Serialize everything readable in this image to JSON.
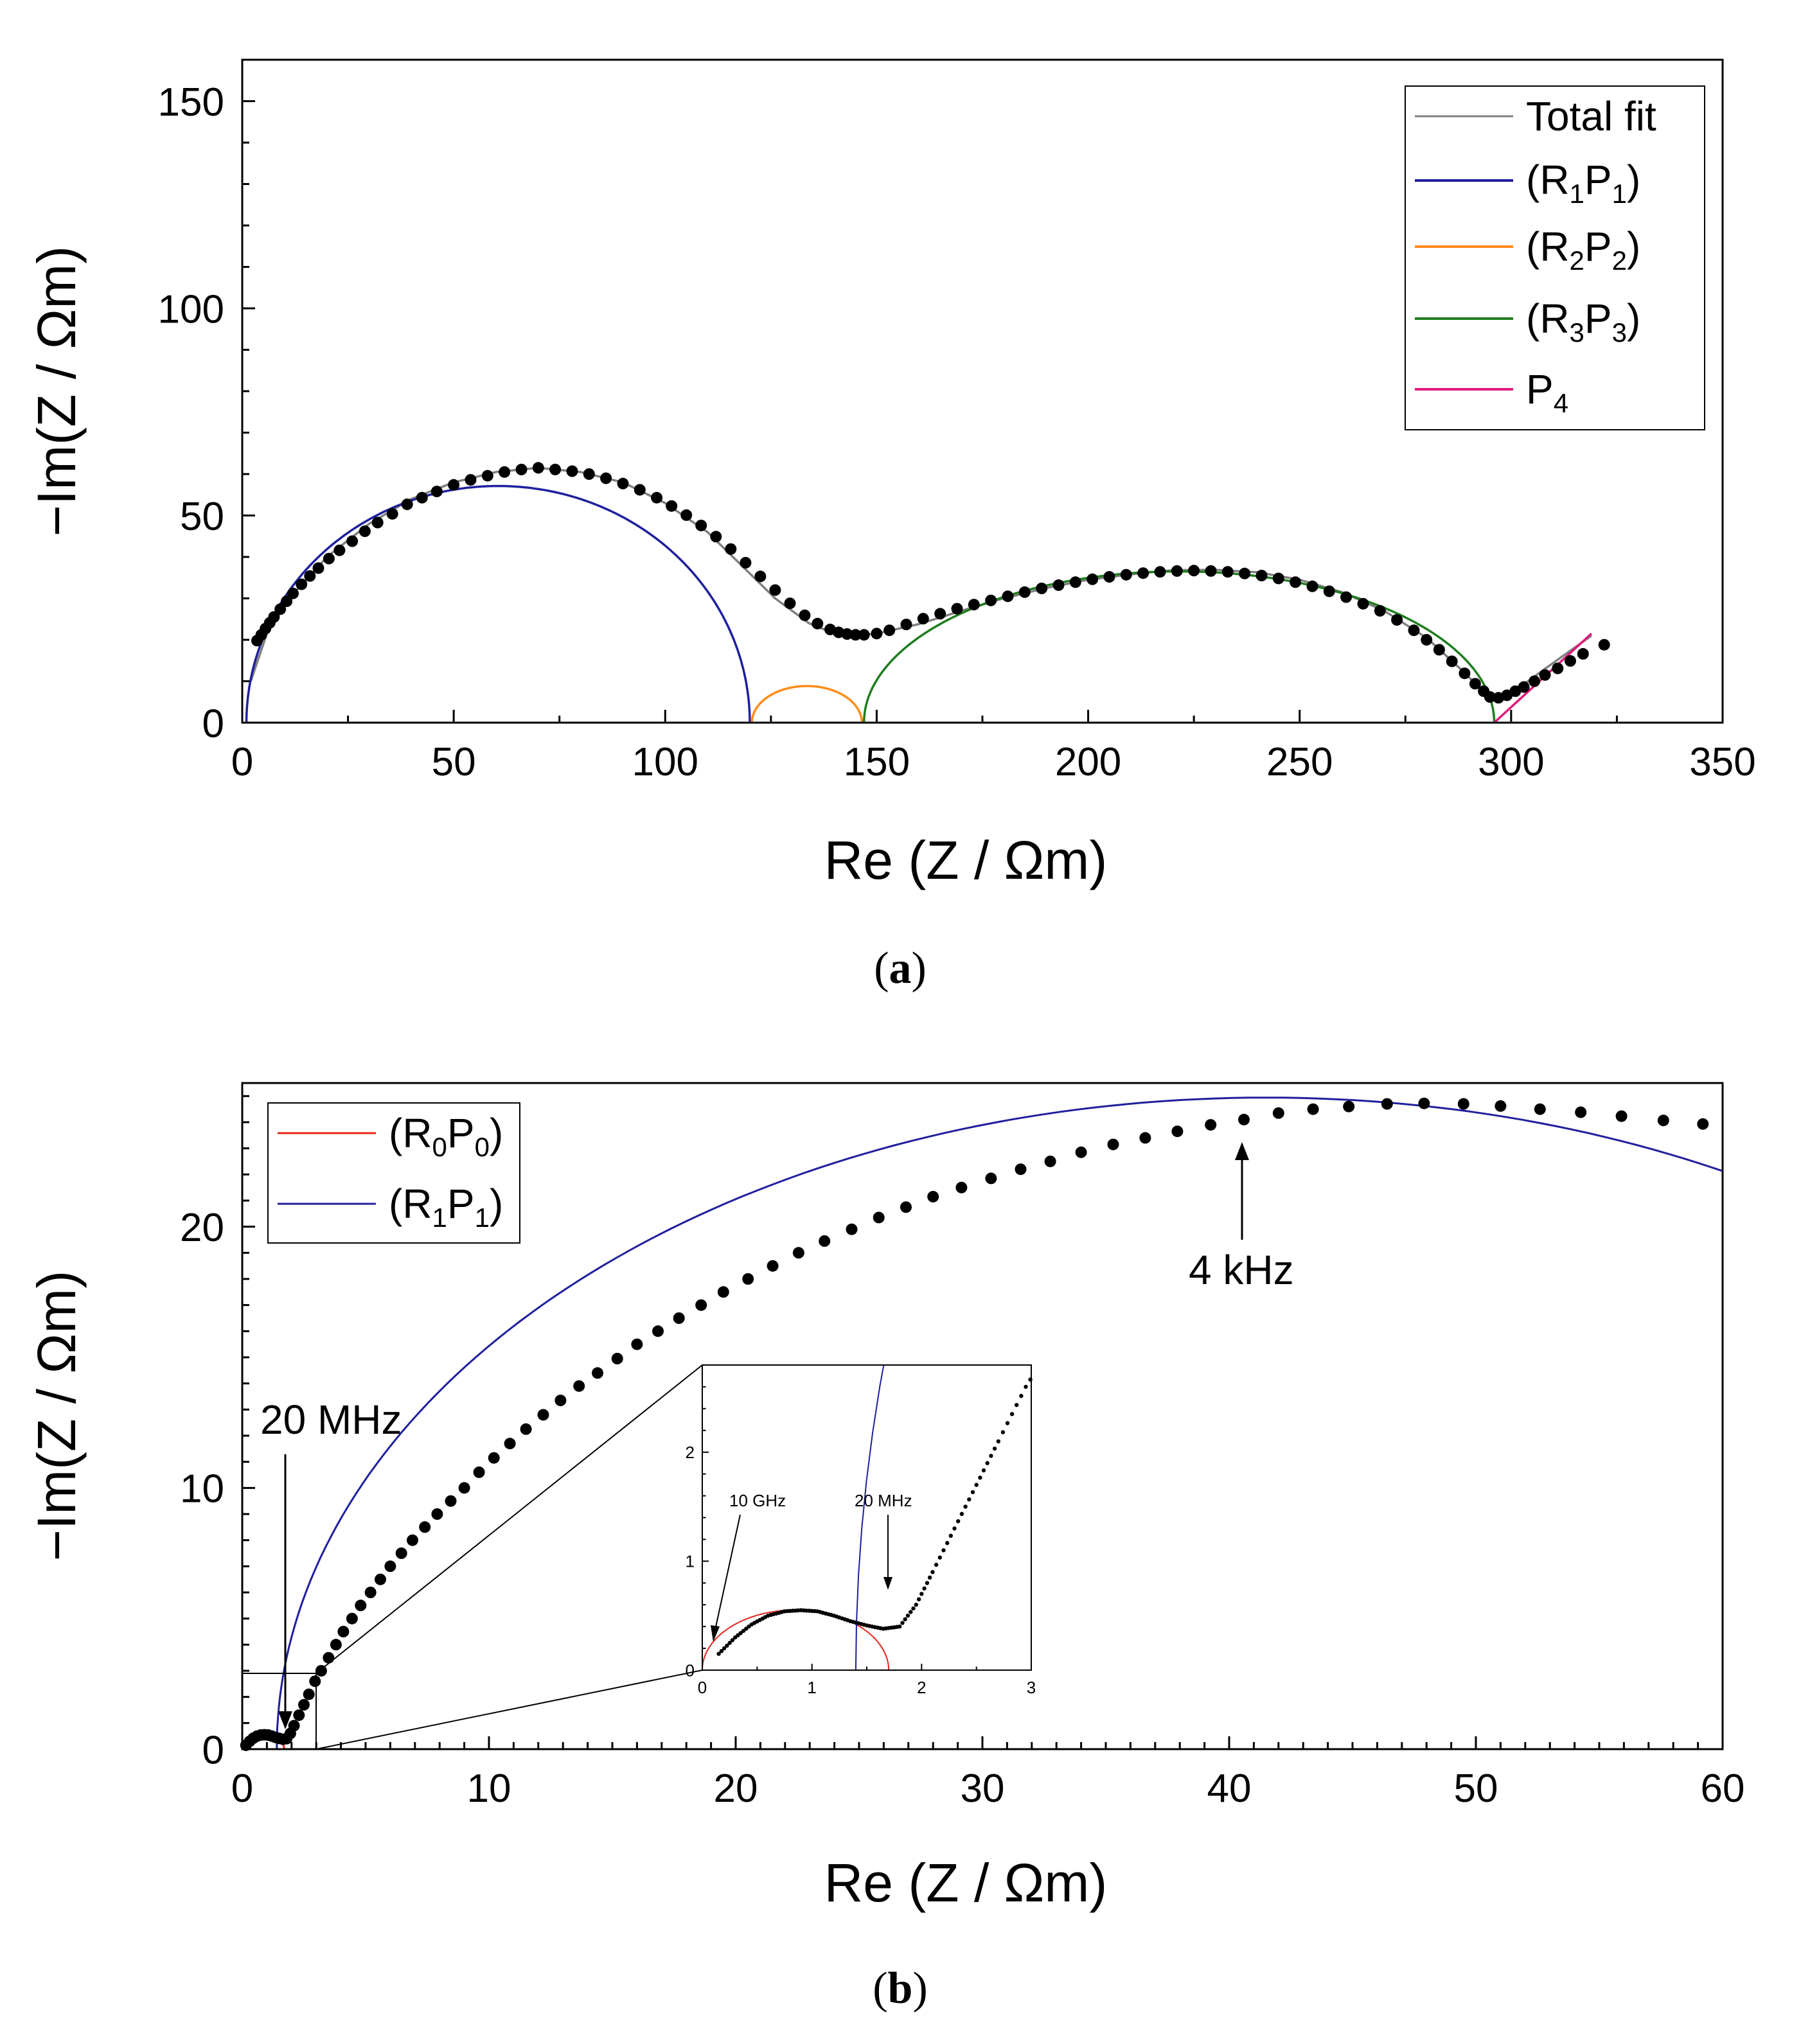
{
  "chart_data": [
    {
      "panel": "a",
      "caption": "(a)",
      "caption_letter": "a",
      "type": "scatter",
      "xlabel": "Re (Z / Ωm)",
      "ylabel": "−Im(Z / Ωm)",
      "xlim": [
        0,
        350
      ],
      "ylim": [
        0,
        160
      ],
      "xticks": [
        0,
        50,
        100,
        150,
        200,
        250,
        300,
        350
      ],
      "yticks": [
        0,
        50,
        100,
        150
      ],
      "legend_position": "top-right",
      "legend": [
        {
          "label": "Total fit",
          "color": "#808080"
        },
        {
          "label": "(R1P1)",
          "color": "#1f1f9e",
          "parts": [
            "(R",
            "1",
            "P",
            "1",
            ")"
          ]
        },
        {
          "label": "(R2P2)",
          "color": "#ff8c1a",
          "parts": [
            "(R",
            "2",
            "P",
            "2",
            ")"
          ]
        },
        {
          "label": "(R3P3)",
          "color": "#1e7d1e",
          "parts": [
            "(R",
            "3",
            "P",
            "3",
            ")"
          ]
        },
        {
          "label": "P4",
          "color": "#e0187a",
          "parts": [
            "P",
            "4"
          ]
        }
      ],
      "series": [
        {
          "name": "Measured",
          "kind": "points",
          "color": "#000000",
          "x": [
            3.5,
            4.5,
            5.5,
            6.5,
            7.5,
            9,
            10.5,
            12,
            14,
            16,
            18,
            20.5,
            23,
            26,
            29,
            32,
            35.5,
            39,
            42.5,
            46,
            50,
            54,
            58,
            62,
            66,
            70,
            74,
            78,
            82,
            86,
            90,
            94,
            98,
            101.5,
            105,
            108.5,
            112,
            115.5,
            119,
            122.5,
            126,
            129.5,
            133,
            136,
            139,
            141,
            143,
            145,
            147,
            150,
            153,
            157,
            161,
            165,
            169,
            173,
            177,
            181,
            185,
            189,
            193,
            197,
            201,
            205,
            209,
            213,
            217,
            221,
            225,
            229,
            233,
            237,
            241,
            245,
            249,
            253,
            257,
            261,
            265,
            269,
            273,
            277,
            280,
            283,
            286,
            289,
            291.5,
            293.5,
            295,
            297,
            299,
            301,
            303,
            305.5,
            308,
            311,
            314,
            317,
            322
          ],
          "y": [
            19.8,
            21.2,
            22.7,
            24.1,
            25.5,
            27.4,
            29.3,
            31.2,
            33.4,
            35.4,
            37.3,
            39.6,
            41.6,
            43.8,
            46.2,
            48.3,
            50.4,
            52.7,
            54.3,
            55.8,
            57.4,
            58.6,
            59.6,
            60.5,
            61.1,
            61.5,
            61.1,
            60.7,
            60.0,
            59.0,
            57.7,
            56.2,
            54.3,
            52.3,
            50.1,
            47.6,
            44.9,
            41.9,
            38.6,
            35.3,
            32.0,
            28.8,
            25.9,
            23.9,
            22.5,
            21.8,
            21.4,
            21.2,
            21.2,
            21.5,
            22.3,
            23.7,
            25.1,
            26.3,
            27.5,
            28.5,
            29.5,
            30.5,
            31.5,
            32.4,
            33.2,
            33.9,
            34.6,
            35.2,
            35.7,
            36.1,
            36.4,
            36.6,
            36.7,
            36.6,
            36.4,
            36.0,
            35.5,
            34.8,
            33.9,
            32.9,
            31.7,
            30.3,
            28.7,
            27.0,
            24.8,
            22.3,
            20.0,
            17.6,
            14.8,
            11.9,
            9.4,
            7.6,
            6.2,
            6.0,
            6.6,
            7.6,
            8.6,
            10.0,
            11.5,
            13.1,
            14.9,
            16.6,
            18.8
          ]
        },
        {
          "name": "Total fit",
          "kind": "line",
          "color": "#808080",
          "x": [
            2,
            6,
            12,
            20,
            30,
            40,
            50,
            60,
            70,
            80,
            90,
            100,
            110,
            118,
            126,
            134,
            140,
            145,
            150,
            160,
            170,
            180,
            190,
            200,
            210,
            220,
            230,
            240,
            250,
            260,
            270,
            280,
            288,
            293,
            296,
            300,
            308,
            319
          ],
          "y": [
            10,
            22,
            31,
            40,
            48,
            54,
            58,
            60.5,
            61.5,
            60.5,
            58,
            53,
            46,
            38,
            30,
            24,
            21.5,
            21,
            21.5,
            23.8,
            27,
            30,
            32.5,
            34.5,
            35.8,
            36.8,
            36.9,
            36.3,
            34.5,
            31.5,
            27,
            20.5,
            13,
            8,
            5.5,
            7,
            13,
            21
          ]
        },
        {
          "name": "(R1P1)",
          "kind": "arc",
          "color": "#1f1f9e",
          "center": [
            60.5,
            0
          ],
          "radius": 59.5,
          "squash": 0.96
        },
        {
          "name": "(R2P2)",
          "kind": "arc",
          "color": "#ff8c1a",
          "center": [
            133.5,
            0
          ],
          "radius": 13,
          "squash": 0.68
        },
        {
          "name": "(R3P3)",
          "kind": "arc",
          "color": "#1e7d1e",
          "center": [
            221.5,
            0
          ],
          "radius": 74.5,
          "squash": 0.49
        },
        {
          "name": "P4",
          "kind": "line",
          "color": "#e0187a",
          "x": [
            296,
            319
          ],
          "y": [
            0,
            21.5
          ]
        }
      ]
    },
    {
      "panel": "b",
      "caption": "(b)",
      "caption_letter": "b",
      "type": "scatter",
      "xlabel": "Re (Z / Ωm)",
      "ylabel": "−Im(Z / Ωm)",
      "xlim": [
        0,
        60
      ],
      "ylim": [
        0,
        25.5
      ],
      "xticks": [
        0,
        10,
        20,
        30,
        40,
        50,
        60
      ],
      "yticks": [
        0,
        10,
        20
      ],
      "legend_position": "top-left",
      "legend": [
        {
          "label": "(R0P0)",
          "color": "#e8241e",
          "parts": [
            "(R",
            "0",
            "P",
            "0",
            ")"
          ]
        },
        {
          "label": "(R1P1)",
          "color": "#1f1f9e",
          "parts": [
            "(R",
            "1",
            "P",
            "1",
            ")"
          ]
        }
      ],
      "annotations": [
        {
          "text": "20 MHz",
          "arrow_to": [
            1.7,
            0.4
          ]
        },
        {
          "text": "4 kHz",
          "arrow_to": [
            40.3,
            24.7
          ]
        }
      ],
      "zoom_box": {
        "xlim": [
          0,
          3
        ],
        "ylim": [
          0,
          3
        ]
      },
      "series": [
        {
          "name": "Measured",
          "kind": "points",
          "color": "#000000",
          "x": [
            0.15,
            0.3,
            0.45,
            0.6,
            0.75,
            0.9,
            1.05,
            1.2,
            1.35,
            1.5,
            1.65,
            1.8,
            1.95,
            2.1,
            2.3,
            2.5,
            2.7,
            2.95,
            3.2,
            3.5,
            3.8,
            4.1,
            4.45,
            4.8,
            5.2,
            5.6,
            6.0,
            6.45,
            6.9,
            7.4,
            7.9,
            8.45,
            9.0,
            9.6,
            10.2,
            10.85,
            11.5,
            12.2,
            12.9,
            13.65,
            14.4,
            15.2,
            16.0,
            16.85,
            17.7,
            18.6,
            19.5,
            20.5,
            21.5,
            22.55,
            23.6,
            24.7,
            25.8,
            26.9,
            28.0,
            29.15,
            30.35,
            31.55,
            32.75,
            34.0,
            35.3,
            36.6,
            37.9,
            39.25,
            40.6,
            42.0,
            43.4,
            44.85,
            46.4,
            47.9,
            49.5,
            51.0,
            52.6,
            54.25,
            55.9,
            57.6,
            59.2
          ],
          "y": [
            0.15,
            0.3,
            0.42,
            0.5,
            0.54,
            0.55,
            0.54,
            0.5,
            0.45,
            0.41,
            0.38,
            0.4,
            0.6,
            0.9,
            1.3,
            1.7,
            2.1,
            2.6,
            3.0,
            3.5,
            4.0,
            4.5,
            5.0,
            5.5,
            6.0,
            6.5,
            7.0,
            7.5,
            8.0,
            8.5,
            9.0,
            9.5,
            10.0,
            10.6,
            11.15,
            11.7,
            12.25,
            12.8,
            13.35,
            13.9,
            14.4,
            14.95,
            15.5,
            16.0,
            16.5,
            17.0,
            17.5,
            18.0,
            18.5,
            19.0,
            19.45,
            19.9,
            20.35,
            20.75,
            21.15,
            21.5,
            21.85,
            22.2,
            22.5,
            22.85,
            23.15,
            23.4,
            23.65,
            23.9,
            24.1,
            24.35,
            24.5,
            24.6,
            24.7,
            24.72,
            24.7,
            24.62,
            24.5,
            24.38,
            24.23,
            24.07,
            23.93
          ]
        },
        {
          "name": "(R0P0)",
          "kind": "arc",
          "color": "#e8241e",
          "center": [
            0.85,
            0
          ],
          "radius": 0.85,
          "squash": 0.65
        },
        {
          "name": "(R1P1)",
          "kind": "arc",
          "color": "#1f1f9e",
          "center": [
            41.5,
            0
          ],
          "radius": 40.1,
          "squash": 0.622
        }
      ],
      "inset": {
        "xlim": [
          0,
          3
        ],
        "ylim": [
          0,
          2.8
        ],
        "xticks": [
          0,
          1,
          2,
          3
        ],
        "yticks": [
          0,
          1,
          2
        ],
        "annotations": [
          {
            "text": "10 GHz",
            "arrow_to": [
              0.1,
              0.25
            ]
          },
          {
            "text": "20 MHz",
            "arrow_to": [
              1.7,
              0.4
            ]
          }
        ]
      }
    }
  ]
}
